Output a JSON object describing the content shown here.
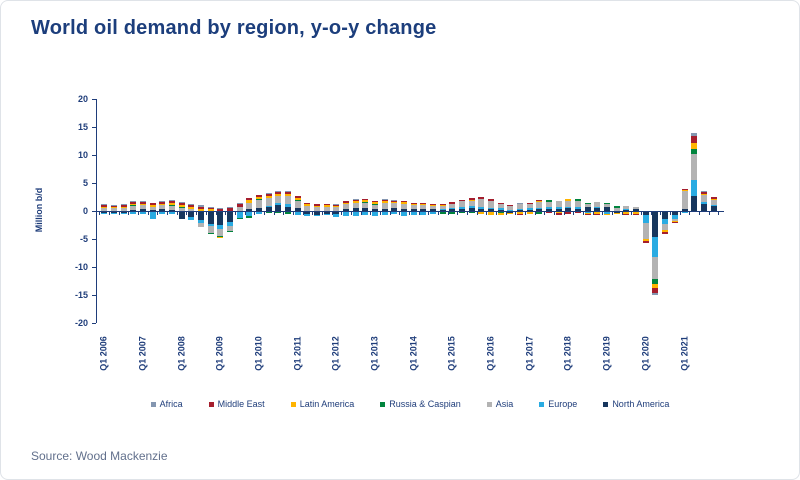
{
  "header": {
    "title": "World oil demand by region, y-o-y change",
    "title_color": "#1c3e7c"
  },
  "footer": {
    "source_text": "Source: Wood Mackenzie",
    "source_color": "#62708c"
  },
  "chart_data": {
    "type": "bar",
    "stacked": true,
    "title": "World oil demand by region, y-o-y change",
    "xlabel": "",
    "ylabel": "Million b/d",
    "ylim": [
      -20,
      20
    ],
    "ytick_step": 5,
    "ytick_labels": [
      "20",
      "15",
      "10",
      "5",
      "0",
      "-5",
      "-10",
      "-15",
      "-20"
    ],
    "grid": false,
    "legend_position": "bottom",
    "axis_color": "#1f3d7a",
    "categories": [
      "Q1 2006",
      "Q2 2006",
      "Q3 2006",
      "Q4 2006",
      "Q1 2007",
      "Q2 2007",
      "Q3 2007",
      "Q4 2007",
      "Q1 2008",
      "Q2 2008",
      "Q3 2008",
      "Q4 2008",
      "Q1 2009",
      "Q2 2009",
      "Q3 2009",
      "Q4 2009",
      "Q1 2010",
      "Q2 2010",
      "Q3 2010",
      "Q4 2010",
      "Q1 2011",
      "Q2 2011",
      "Q3 2011",
      "Q4 2011",
      "Q1 2012",
      "Q2 2012",
      "Q3 2012",
      "Q4 2012",
      "Q1 2013",
      "Q2 2013",
      "Q3 2013",
      "Q4 2013",
      "Q1 2014",
      "Q2 2014",
      "Q3 2014",
      "Q4 2014",
      "Q1 2015",
      "Q2 2015",
      "Q3 2015",
      "Q4 2015",
      "Q1 2016",
      "Q2 2016",
      "Q3 2016",
      "Q4 2016",
      "Q1 2017",
      "Q2 2017",
      "Q3 2017",
      "Q4 2017",
      "Q1 2018",
      "Q2 2018",
      "Q3 2018",
      "Q4 2018",
      "Q1 2019",
      "Q2 2019",
      "Q3 2019",
      "Q4 2019",
      "Q1 2020",
      "Q2 2020",
      "Q3 2020",
      "Q4 2020",
      "Q1 2021",
      "Q2 2021",
      "Q3 2021",
      "Q4 2021"
    ],
    "x_axis_shown_labels": [
      "Q1 2006",
      "Q1 2007",
      "Q1 2008",
      "Q1 2009",
      "Q1 2010",
      "Q1 2011",
      "Q1 2012",
      "Q1 2013",
      "Q1 2014",
      "Q1 2015",
      "Q1 2016",
      "Q1 2017",
      "Q1 2018",
      "Q1 2019",
      "Q1 2020",
      "Q1 2021"
    ],
    "stack_order_bottom_to_top": [
      "North America",
      "Europe",
      "Asia",
      "Russia & Caspian",
      "Latin America",
      "Middle East",
      "Africa"
    ],
    "series": [
      {
        "name": "Africa",
        "color": "#8496b0",
        "values": [
          0.1,
          0.1,
          0.1,
          0.1,
          0.1,
          0,
          0.1,
          0.1,
          0.1,
          0.1,
          0.2,
          0.1,
          0.1,
          0.2,
          0.2,
          0,
          0,
          0.1,
          0.1,
          0.1,
          0,
          0,
          0,
          0,
          0.1,
          0,
          0.1,
          0,
          0,
          0.1,
          0.1,
          0,
          0,
          0,
          0,
          0,
          0,
          0,
          0,
          0,
          0,
          0,
          0,
          0.1,
          0,
          0,
          0,
          0,
          0,
          0,
          0,
          0,
          0,
          0,
          0,
          0,
          0,
          -0.4,
          0,
          0,
          0,
          0.6,
          0.1,
          0
        ]
      },
      {
        "name": "Middle East",
        "color": "#a51e2d",
        "values": [
          0.3,
          0.3,
          0.3,
          0.4,
          0.4,
          0.35,
          0.4,
          0.4,
          0.45,
          0.4,
          0.5,
          0.3,
          0.4,
          0.5,
          0.4,
          0.5,
          0.4,
          0.4,
          0.4,
          0.3,
          0.4,
          0.3,
          0.3,
          0.3,
          0.3,
          0.3,
          0.3,
          0.3,
          0.25,
          0.3,
          0.25,
          0.25,
          0.2,
          0.2,
          0.15,
          0.15,
          0.3,
          0.3,
          0.3,
          0.4,
          0.4,
          0.2,
          0.2,
          -0.2,
          0.2,
          0.2,
          -0.2,
          -0.3,
          -0.3,
          -0.2,
          -0.2,
          -0.1,
          0,
          0,
          -0.1,
          -0.2,
          -0.3,
          -0.9,
          -0.4,
          -0.2,
          0.1,
          1.3,
          0.4,
          0.4
        ]
      },
      {
        "name": "Latin America",
        "color": "#ffb400",
        "values": [
          0.2,
          0.2,
          0.2,
          0.3,
          0.3,
          0.25,
          0.3,
          0.4,
          0.35,
          0.35,
          0.3,
          0.3,
          -0.1,
          0,
          0,
          0.4,
          0.4,
          0.4,
          0.4,
          0.4,
          0.3,
          0.3,
          0.2,
          0.3,
          0.2,
          0.3,
          0.3,
          0.3,
          0.25,
          0.3,
          0.25,
          0.25,
          0.2,
          0.2,
          0.15,
          0.15,
          0,
          0,
          0.1,
          -0.3,
          -0.6,
          -0.4,
          -0.2,
          -0.3,
          -0.4,
          0.2,
          0,
          -0.2,
          0.3,
          0,
          -0.1,
          -0.3,
          -0.2,
          -0.2,
          -0.3,
          -0.3,
          -0.3,
          -0.7,
          -0.4,
          -0.2,
          0.3,
          1.1,
          0.3,
          0.2
        ]
      },
      {
        "name": "Russia & Caspian",
        "color": "#00843d",
        "values": [
          0,
          0,
          0,
          0.1,
          0,
          0,
          0,
          0.1,
          0.1,
          0,
          0,
          -0.2,
          -0.2,
          -0.2,
          -0.2,
          -0.3,
          0.2,
          -0.2,
          -0.1,
          -0.3,
          0.2,
          0,
          0,
          0,
          0,
          0,
          0,
          0.1,
          0.1,
          0,
          0,
          0,
          0,
          0,
          0,
          -0.4,
          -0.3,
          -0.2,
          -0.2,
          0,
          0,
          -0.1,
          0,
          0.1,
          0,
          -0.3,
          0.3,
          0,
          0,
          0.4,
          0.2,
          0,
          0.1,
          0.3,
          0,
          0,
          0,
          -0.8,
          0,
          0,
          0,
          0.8,
          0,
          0
        ]
      },
      {
        "name": "Asia",
        "color": "#b3b3b3",
        "values": [
          0.6,
          0.5,
          0.6,
          0.7,
          0.7,
          0.6,
          0.7,
          0.7,
          0.6,
          0.35,
          -0.8,
          -1.3,
          -1.3,
          -0.9,
          0.8,
          1.2,
          1.4,
          1.4,
          1.2,
          1.5,
          1.3,
          0.9,
          0.7,
          0.7,
          0.7,
          0.9,
          1.0,
          1.0,
          0.9,
          1.0,
          0.9,
          0.9,
          0.8,
          0.8,
          0.7,
          0.6,
          0.7,
          1.0,
          1.0,
          1.4,
          1.2,
          0.8,
          0.7,
          0.9,
          0.8,
          1.0,
          0.9,
          1.0,
          1.0,
          1.0,
          0.6,
          0.9,
          0.6,
          0.6,
          0.5,
          0.5,
          -2.9,
          -3.9,
          -1.0,
          -0.4,
          3.3,
          4.6,
          1.2,
          0.9
        ]
      },
      {
        "name": "Europe",
        "color": "#29abe2",
        "values": [
          -0.1,
          -0.1,
          -0.1,
          -0.3,
          -0.3,
          -1.2,
          -0.4,
          -0.3,
          0,
          -0.5,
          -0.4,
          -0.4,
          -0.7,
          -0.7,
          -1.1,
          -0.8,
          -0.4,
          0.2,
          0.5,
          0.4,
          -0.5,
          -0.3,
          -0.3,
          -0.3,
          -0.5,
          -0.8,
          -0.7,
          -0.5,
          -0.8,
          -0.5,
          -0.4,
          -0.7,
          -0.5,
          -0.6,
          -0.3,
          0.1,
          0.2,
          0.3,
          0.4,
          0.3,
          0.3,
          0.3,
          0.2,
          0.2,
          0.3,
          0.3,
          0.4,
          0.3,
          0.3,
          0.3,
          -0.2,
          0.2,
          -0.3,
          0,
          0.2,
          0,
          -1.5,
          -3.7,
          -1.0,
          -0.6,
          -0.2,
          3.0,
          0.3,
          0.1
        ]
      },
      {
        "name": "North America",
        "color": "#17365d",
        "values": [
          -0.2,
          -0.2,
          -0.2,
          0.2,
          0.3,
          0.2,
          0.3,
          0.2,
          -1.3,
          -0.9,
          -1.5,
          -2.1,
          -2.3,
          -1.8,
          0,
          0.3,
          0.5,
          0.7,
          1.0,
          0.8,
          0.5,
          -0.4,
          -0.5,
          -0.3,
          -0.4,
          0.3,
          0.5,
          0.5,
          0.3,
          0.4,
          0.5,
          0.4,
          0.3,
          0.3,
          0.3,
          0.3,
          0.4,
          0.4,
          0.5,
          0.4,
          0.3,
          0.2,
          -0.1,
          0.2,
          0.2,
          0.3,
          0.3,
          0.4,
          0.5,
          0.4,
          0.7,
          0.5,
          0.7,
          -0.1,
          0.2,
          0.3,
          -0.5,
          -4.4,
          -1.2,
          -0.6,
          0.3,
          2.6,
          1.3,
          0.9
        ]
      }
    ]
  }
}
